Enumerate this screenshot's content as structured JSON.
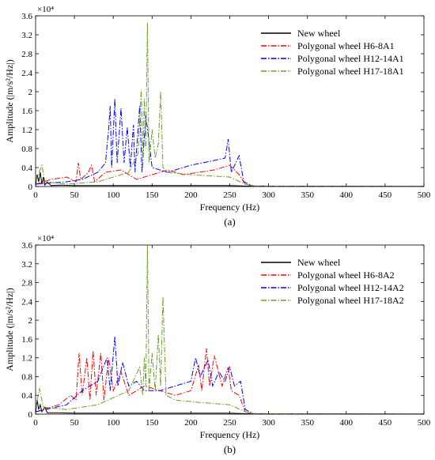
{
  "chart_data": [
    {
      "type": "line",
      "caption": "(a)",
      "xlabel": "Frequency (Hz)",
      "ylabel": "Amplitude (|m/s²/Hz|)",
      "xlim": [
        0,
        500
      ],
      "ylim": [
        0,
        3.6
      ],
      "y_scale_note": "×10⁴",
      "y_multiplier": 10000,
      "xticks": [
        0,
        50,
        100,
        150,
        200,
        250,
        300,
        350,
        400,
        450,
        500
      ],
      "yticks": [
        0,
        0.4,
        0.8,
        1.2,
        1.6,
        2,
        2.4,
        2.8,
        3.2,
        3.6
      ],
      "ytick_labels": [
        "0",
        "0.4",
        "0.8",
        "1.2",
        "1.6",
        "2",
        "2.4",
        "2.8",
        "3.2",
        "3.6"
      ],
      "grid": false,
      "legend_position": "top-right",
      "series": [
        {
          "name": "New wheel",
          "color": "#000000",
          "dash": "solid",
          "points": [
            [
              0,
              0.02
            ],
            [
              2,
              0.25
            ],
            [
              4,
              0.1
            ],
            [
              6,
              0.3
            ],
            [
              8,
              0.05
            ],
            [
              10,
              0.2
            ],
            [
              12,
              0.03
            ],
            [
              15,
              0.1
            ],
            [
              20,
              0.02
            ],
            [
              30,
              0.03
            ],
            [
              50,
              0.02
            ],
            [
              100,
              0.02
            ],
            [
              150,
              0.02
            ],
            [
              200,
              0.02
            ],
            [
              250,
              0.02
            ],
            [
              270,
              0.01
            ],
            [
              300,
              0.005
            ],
            [
              500,
              0.002
            ]
          ]
        },
        {
          "name": "Polygonal wheel H6-8A1",
          "color": "#ff0000",
          "dash": "dashdot",
          "points": [
            [
              0,
              0.05
            ],
            [
              20,
              0.15
            ],
            [
              40,
              0.2
            ],
            [
              52,
              0.1
            ],
            [
              55,
              0.5
            ],
            [
              58,
              0.15
            ],
            [
              68,
              0.3
            ],
            [
              72,
              0.45
            ],
            [
              76,
              0.1
            ],
            [
              90,
              0.3
            ],
            [
              110,
              0.35
            ],
            [
              130,
              0.15
            ],
            [
              150,
              0.25
            ],
            [
              170,
              0.35
            ],
            [
              190,
              0.25
            ],
            [
              210,
              0.3
            ],
            [
              230,
              0.35
            ],
            [
              250,
              0.45
            ],
            [
              262,
              0.25
            ],
            [
              270,
              0.05
            ],
            [
              280,
              0.01
            ],
            [
              500,
              0.002
            ]
          ]
        },
        {
          "name": "Polygonal wheel H12-14A1",
          "color": "#0000ff",
          "dash": "dashdot",
          "points": [
            [
              0,
              0.05
            ],
            [
              40,
              0.1
            ],
            [
              60,
              0.15
            ],
            [
              80,
              0.3
            ],
            [
              90,
              0.5
            ],
            [
              94,
              1.2
            ],
            [
              96,
              1.7
            ],
            [
              98,
              0.4
            ],
            [
              102,
              1.85
            ],
            [
              105,
              0.5
            ],
            [
              110,
              1.65
            ],
            [
              114,
              0.5
            ],
            [
              118,
              1.25
            ],
            [
              122,
              0.4
            ],
            [
              126,
              1.3
            ],
            [
              128,
              0.3
            ],
            [
              134,
              1.7
            ],
            [
              137,
              0.3
            ],
            [
              142,
              1.5
            ],
            [
              150,
              0.4
            ],
            [
              170,
              0.3
            ],
            [
              200,
              0.45
            ],
            [
              230,
              0.55
            ],
            [
              244,
              0.6
            ],
            [
              248,
              1.0
            ],
            [
              252,
              0.3
            ],
            [
              262,
              0.65
            ],
            [
              268,
              0.1
            ],
            [
              280,
              0.01
            ],
            [
              500,
              0.002
            ]
          ]
        },
        {
          "name": "Polygonal wheel H17-18A1",
          "color": "#6aa02a",
          "dash": "dashdot",
          "points": [
            [
              0,
              0.1
            ],
            [
              8,
              0.45
            ],
            [
              12,
              0.1
            ],
            [
              40,
              0.05
            ],
            [
              80,
              0.1
            ],
            [
              120,
              0.3
            ],
            [
              132,
              0.7
            ],
            [
              136,
              2.05
            ],
            [
              138,
              0.6
            ],
            [
              140,
              1.85
            ],
            [
              142,
              0.8
            ],
            [
              144,
              3.45
            ],
            [
              146,
              0.5
            ],
            [
              150,
              1.2
            ],
            [
              154,
              0.6
            ],
            [
              158,
              0.9
            ],
            [
              161,
              2.0
            ],
            [
              164,
              0.4
            ],
            [
              170,
              0.3
            ],
            [
              200,
              0.25
            ],
            [
              250,
              0.2
            ],
            [
              270,
              0.05
            ],
            [
              280,
              0.01
            ],
            [
              500,
              0.002
            ]
          ]
        }
      ]
    },
    {
      "type": "line",
      "caption": "(b)",
      "xlabel": "Frequency (Hz)",
      "ylabel": "Amplitude (|m/s²/Hz|)",
      "xlim": [
        0,
        500
      ],
      "ylim": [
        0,
        3.6
      ],
      "y_scale_note": "×10⁴",
      "y_multiplier": 10000,
      "xticks": [
        0,
        50,
        100,
        150,
        200,
        250,
        300,
        350,
        400,
        450,
        500
      ],
      "yticks": [
        0,
        0.4,
        0.8,
        1.2,
        1.6,
        2,
        2.4,
        2.8,
        3.2,
        3.6
      ],
      "ytick_labels": [
        "0",
        "0.4",
        "0.8",
        "1.2",
        "1.6",
        "2",
        "2.4",
        "2.8",
        "3.2",
        "3.6"
      ],
      "grid": false,
      "legend_position": "top-right",
      "series": [
        {
          "name": "New wheel",
          "color": "#000000",
          "dash": "solid",
          "points": [
            [
              0,
              0.02
            ],
            [
              2,
              0.3
            ],
            [
              4,
              0.1
            ],
            [
              6,
              0.2
            ],
            [
              8,
              0.05
            ],
            [
              12,
              0.15
            ],
            [
              15,
              0.03
            ],
            [
              30,
              0.03
            ],
            [
              50,
              0.02
            ],
            [
              100,
              0.02
            ],
            [
              150,
              0.02
            ],
            [
              200,
              0.02
            ],
            [
              250,
              0.02
            ],
            [
              270,
              0.01
            ],
            [
              300,
              0.005
            ],
            [
              500,
              0.002
            ]
          ]
        },
        {
          "name": "Polygonal wheel H6-8A2",
          "color": "#ff0000",
          "dash": "dashdot",
          "points": [
            [
              0,
              0.05
            ],
            [
              30,
              0.2
            ],
            [
              45,
              0.4
            ],
            [
              52,
              0.3
            ],
            [
              56,
              1.3
            ],
            [
              60,
              0.4
            ],
            [
              66,
              1.2
            ],
            [
              70,
              0.3
            ],
            [
              74,
              1.35
            ],
            [
              78,
              0.4
            ],
            [
              84,
              1.3
            ],
            [
              88,
              0.3
            ],
            [
              94,
              1.2
            ],
            [
              100,
              0.5
            ],
            [
              110,
              0.9
            ],
            [
              120,
              0.4
            ],
            [
              140,
              0.6
            ],
            [
              160,
              0.5
            ],
            [
              180,
              0.4
            ],
            [
              200,
              0.5
            ],
            [
              210,
              1.05
            ],
            [
              214,
              0.5
            ],
            [
              220,
              1.4
            ],
            [
              224,
              0.6
            ],
            [
              230,
              1.25
            ],
            [
              240,
              0.6
            ],
            [
              248,
              1.0
            ],
            [
              252,
              0.5
            ],
            [
              262,
              0.4
            ],
            [
              270,
              0.05
            ],
            [
              280,
              0.01
            ],
            [
              500,
              0.002
            ]
          ]
        },
        {
          "name": "Polygonal wheel H12-14A2",
          "color": "#0000ff",
          "dash": "dashdot",
          "points": [
            [
              0,
              0.05
            ],
            [
              40,
              0.2
            ],
            [
              60,
              0.5
            ],
            [
              80,
              0.7
            ],
            [
              92,
              1.2
            ],
            [
              96,
              0.5
            ],
            [
              102,
              1.65
            ],
            [
              106,
              0.6
            ],
            [
              112,
              1.1
            ],
            [
              120,
              0.6
            ],
            [
              130,
              0.7
            ],
            [
              140,
              0.5
            ],
            [
              160,
              0.5
            ],
            [
              180,
              0.6
            ],
            [
              200,
              0.7
            ],
            [
              206,
              1.2
            ],
            [
              212,
              0.8
            ],
            [
              222,
              1.15
            ],
            [
              228,
              0.6
            ],
            [
              236,
              0.9
            ],
            [
              244,
              0.7
            ],
            [
              250,
              1.0
            ],
            [
              256,
              0.6
            ],
            [
              264,
              0.7
            ],
            [
              270,
              0.1
            ],
            [
              280,
              0.01
            ],
            [
              500,
              0.002
            ]
          ]
        },
        {
          "name": "Polygonal wheel H17-18A2",
          "color": "#6aa02a",
          "dash": "dashdot",
          "points": [
            [
              0,
              0.1
            ],
            [
              5,
              0.55
            ],
            [
              10,
              0.15
            ],
            [
              40,
              0.1
            ],
            [
              80,
              0.2
            ],
            [
              120,
              0.5
            ],
            [
              134,
              1.0
            ],
            [
              138,
              0.4
            ],
            [
              140,
              1.2
            ],
            [
              142,
              0.6
            ],
            [
              144,
              3.6
            ],
            [
              146,
              0.5
            ],
            [
              150,
              1.3
            ],
            [
              154,
              0.5
            ],
            [
              158,
              1.7
            ],
            [
              161,
              0.6
            ],
            [
              164,
              2.5
            ],
            [
              168,
              0.4
            ],
            [
              180,
              0.3
            ],
            [
              210,
              0.25
            ],
            [
              250,
              0.2
            ],
            [
              270,
              0.05
            ],
            [
              280,
              0.01
            ],
            [
              500,
              0.002
            ]
          ]
        }
      ]
    }
  ]
}
